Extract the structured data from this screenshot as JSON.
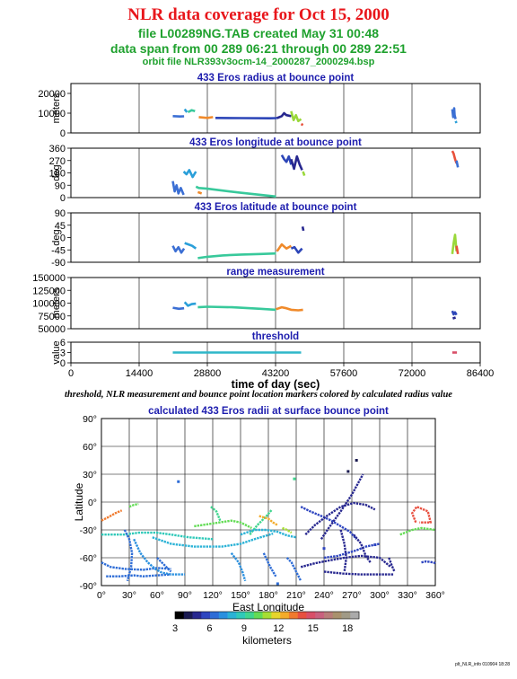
{
  "header": {
    "title": "NLR data coverage for Oct 15, 2000",
    "file_line": "file L00289NG.TAB created May 31 00:48",
    "span_line": "data span from 00 289 06:21 through 00 289 22:51",
    "orbit_line": "orbit file NLR393v3ocm-14_2000287_2000294.bsp"
  },
  "caption": "threshold, NLR measurement and bounce point location markers colored by calculated radius value",
  "footer": "plt_NLR_info 010904 18:28",
  "colors": {
    "title": "#e8161b",
    "subtitle": "#1fa12e",
    "panel_title": "#1d1dae"
  },
  "chart_data": [
    {
      "id": "radius",
      "type": "scatter",
      "title": "433 Eros radius at bounce point",
      "ylabel": "meters",
      "xlim": [
        0,
        86400
      ],
      "ylim": [
        0,
        25000
      ],
      "yticks": [
        0,
        10000,
        20000
      ],
      "segments": [
        {
          "x": [
            21500,
            23000,
            23900
          ],
          "y": [
            8500,
            8300,
            8400
          ]
        },
        {
          "x": [
            24000,
            24500
          ],
          "y": [
            12000,
            10500
          ]
        },
        {
          "x": [
            24700,
            25500,
            26200
          ],
          "y": [
            10500,
            11500,
            11000
          ]
        },
        {
          "x": [
            27000,
            28800,
            30000
          ],
          "y": [
            8000,
            7600,
            8000
          ]
        },
        {
          "x": [
            30500,
            36000,
            42000,
            43500
          ],
          "y": [
            7600,
            7500,
            7400,
            7500
          ]
        },
        {
          "x": [
            43500,
            44500,
            45000,
            45500,
            46500
          ],
          "y": [
            7500,
            8500,
            10000,
            9000,
            8500
          ]
        },
        {
          "x": [
            46500,
            47000,
            47500,
            48000,
            48600
          ],
          "y": [
            11000,
            6500,
            9000,
            6000,
            7000
          ]
        },
        {
          "x": [
            48600,
            49000
          ],
          "y": [
            4500,
            4000
          ]
        },
        {
          "x": [
            80500,
            80700,
            80900,
            81000,
            81200
          ],
          "y": [
            12000,
            8000,
            12500,
            9000,
            7000
          ]
        },
        {
          "x": [
            81200,
            81400
          ],
          "y": [
            6000,
            5000
          ]
        }
      ]
    },
    {
      "id": "longitude",
      "type": "scatter",
      "title": "433 Eros longitude at bounce point",
      "ylabel": "deg",
      "xlim": [
        0,
        86400
      ],
      "ylim": [
        0,
        360
      ],
      "yticks": [
        0,
        90,
        180,
        270,
        360
      ],
      "segments": [
        {
          "x": [
            21500,
            21900,
            22300,
            22700,
            23200,
            23800
          ],
          "y": [
            120,
            45,
            90,
            30,
            70,
            20
          ]
        },
        {
          "x": [
            23800,
            24400,
            25000,
            25700,
            26400
          ],
          "y": [
            190,
            170,
            200,
            150,
            190
          ]
        },
        {
          "x": [
            26400,
            27000,
            28800,
            36000,
            43300
          ],
          "y": [
            80,
            70,
            65,
            35,
            8
          ]
        },
        {
          "x": [
            26800,
            27600
          ],
          "y": [
            40,
            30
          ]
        },
        {
          "x": [
            44500,
            45000,
            45500,
            46000,
            46500
          ],
          "y": [
            310,
            280,
            260,
            300,
            240
          ]
        },
        {
          "x": [
            46500,
            47100,
            47700,
            48300,
            48800
          ],
          "y": [
            280,
            210,
            300,
            240,
            200
          ]
        },
        {
          "x": [
            49000,
            49300
          ],
          "y": [
            190,
            160
          ]
        },
        {
          "x": [
            80500,
            80800,
            81100,
            81400
          ],
          "y": [
            340,
            320,
            280,
            250
          ]
        },
        {
          "x": [
            81400,
            81700
          ],
          "y": [
            270,
            220
          ]
        }
      ]
    },
    {
      "id": "latitude",
      "type": "scatter",
      "title": "433 Eros latitude at bounce point",
      "ylabel": "deg",
      "xlim": [
        0,
        86400
      ],
      "ylim": [
        -90,
        90
      ],
      "yticks": [
        -90,
        -45,
        0,
        45,
        90
      ],
      "segments": [
        {
          "x": [
            21500,
            22100,
            22700,
            23300,
            23900
          ],
          "y": [
            -30,
            -50,
            -35,
            -55,
            -40
          ]
        },
        {
          "x": [
            24000,
            24800,
            25600,
            26400
          ],
          "y": [
            -20,
            -25,
            -30,
            -40
          ]
        },
        {
          "x": [
            26800,
            28800,
            32000,
            36000,
            40000,
            43300
          ],
          "y": [
            -75,
            -70,
            -65,
            -62,
            -60,
            -58
          ]
        },
        {
          "x": [
            43500,
            44500,
            45500,
            46500
          ],
          "y": [
            -50,
            -25,
            -40,
            -30
          ]
        },
        {
          "x": [
            46500,
            47200,
            48000,
            48800
          ],
          "y": [
            -40,
            -35,
            -55,
            -40
          ]
        },
        {
          "x": [
            48900,
            49100
          ],
          "y": [
            40,
            25
          ]
        },
        {
          "x": [
            80500,
            80800,
            81100,
            81400
          ],
          "y": [
            -60,
            -20,
            10,
            -50
          ]
        },
        {
          "x": [
            81400,
            81700
          ],
          "y": [
            -30,
            -60
          ]
        }
      ]
    },
    {
      "id": "range",
      "type": "scatter",
      "title": "range measurement",
      "ylabel": "meters",
      "xlim": [
        0,
        86400
      ],
      "ylim": [
        50000,
        150000
      ],
      "yticks": [
        50000,
        75000,
        100000,
        125000,
        150000
      ],
      "segments": [
        {
          "x": [
            21500,
            22800,
            23900
          ],
          "y": [
            91000,
            89000,
            90000
          ]
        },
        {
          "x": [
            24000,
            24700,
            25500,
            26400
          ],
          "y": [
            102000,
            95000,
            98000,
            99000
          ]
        },
        {
          "x": [
            26800,
            28800,
            34000,
            40000,
            43300
          ],
          "y": [
            92000,
            93000,
            92000,
            89000,
            87000
          ]
        },
        {
          "x": [
            43300,
            44500,
            45500,
            46500,
            48000,
            49000
          ],
          "y": [
            88000,
            92000,
            90000,
            87000,
            86000,
            87000
          ]
        },
        {
          "x": [
            80500,
            80800,
            81100,
            81400
          ],
          "y": [
            85000,
            78000,
            82000,
            77000
          ]
        },
        {
          "x": [
            80600,
            81200
          ],
          "y": [
            70000,
            72000
          ]
        }
      ]
    },
    {
      "id": "threshold",
      "type": "scatter",
      "title": "threshold",
      "ylabel": "value",
      "xlabel": "time of day (sec)",
      "xlim": [
        0,
        86400
      ],
      "ylim": [
        0,
        6
      ],
      "yticks": [
        0,
        3,
        6
      ],
      "xticks": [
        0,
        14400,
        28800,
        43200,
        57600,
        72000,
        86400
      ],
      "segments": [
        {
          "x": [
            21500,
            24000,
            28800,
            36000,
            43200,
            48600
          ],
          "y": [
            3,
            3,
            3,
            3,
            3,
            3
          ]
        },
        {
          "x": [
            80500,
            81500
          ],
          "y": [
            3,
            3
          ]
        }
      ]
    },
    {
      "id": "map",
      "type": "scatter",
      "title": "calculated 433 Eros radii at surface bounce point",
      "xlabel": "East Longitude",
      "ylabel": "Latitude",
      "xlim": [
        0,
        360
      ],
      "ylim": [
        -90,
        90
      ],
      "xticks": [
        0,
        30,
        60,
        90,
        120,
        150,
        180,
        210,
        240,
        270,
        300,
        330,
        360
      ],
      "yticks": [
        -90,
        -60,
        -30,
        0,
        30,
        60,
        90
      ],
      "colorbar": {
        "label": "kilometers",
        "min": 3,
        "max": 19,
        "ticks": [
          3,
          6,
          9,
          12,
          15,
          18
        ],
        "colors": [
          "#000000",
          "#1a1a50",
          "#27278f",
          "#2e45c0",
          "#2d6cd6",
          "#2a90df",
          "#2ab2d6",
          "#2fc9b9",
          "#3fd58e",
          "#63dc55",
          "#a6df32",
          "#e6d52b",
          "#f3ab2a",
          "#f07a2d",
          "#e85040",
          "#d94f68",
          "#c9607e",
          "#b97c79",
          "#a9916d",
          "#a09a86",
          "#aaaaaa"
        ]
      },
      "segments": [
        {
          "x": [
            0,
            8,
            15,
            22
          ],
          "y": [
            -20,
            -16,
            -12,
            -9
          ],
          "v": 13.5
        },
        {
          "x": [
            30,
            35,
            40
          ],
          "y": [
            -5,
            -3,
            -2
          ],
          "v": 10
        },
        {
          "x": [
            0,
            25,
            40,
            60,
            75,
            95,
            120
          ],
          "y": [
            -35,
            -35,
            -33,
            -33,
            -35,
            -38,
            -40
          ],
          "v": 8.5
        },
        {
          "x": [
            0,
            10,
            25,
            45,
            60,
            75
          ],
          "y": [
            -65,
            -70,
            -72,
            -73,
            -71,
            -72
          ],
          "v": 6
        },
        {
          "x": [
            5,
            20,
            35,
            45,
            60,
            75
          ],
          "y": [
            -80,
            -80,
            -79,
            -80,
            -79,
            -78
          ],
          "v": 6.5
        },
        {
          "x": [
            35,
            42,
            50,
            58,
            65,
            75,
            90
          ],
          "y": [
            -40,
            -55,
            -65,
            -72,
            -76,
            -78,
            -78
          ],
          "v": 7
        },
        {
          "x": [
            25,
            30,
            33,
            32,
            28
          ],
          "y": [
            -30,
            -40,
            -55,
            -70,
            -85
          ],
          "v": 6
        },
        {
          "x": [
            60,
            65,
            70,
            75
          ],
          "y": [
            -60,
            -65,
            -70,
            -75
          ],
          "v": 6
        },
        {
          "x": [
            55,
            75,
            100,
            130,
            150,
            165,
            185
          ],
          "y": [
            -38,
            -45,
            -48,
            -48,
            -45,
            -40,
            -34
          ],
          "v": 7.5
        },
        {
          "x": [
            100,
            120,
            140,
            150,
            162
          ],
          "y": [
            -26,
            -23,
            -20,
            -22,
            -28
          ],
          "v": 10.5
        },
        {
          "x": [
            118,
            124,
            128
          ],
          "y": [
            -5,
            -10,
            -20
          ],
          "v": 9
        },
        {
          "x": [
            160,
            168,
            178,
            184
          ],
          "y": [
            -35,
            -25,
            -15,
            -8
          ],
          "v": 9
        },
        {
          "x": [
            150,
            165,
            178,
            190,
            200,
            210
          ],
          "y": [
            -35,
            -30,
            -30,
            -32,
            -36,
            -38
          ],
          "v": 8
        },
        {
          "x": [
            170,
            180,
            185,
            190
          ],
          "y": [
            -15,
            -18,
            -22,
            -25
          ],
          "v": 12.5
        },
        {
          "x": [
            195,
            200,
            205
          ],
          "y": [
            -28,
            -30,
            -33
          ],
          "v": 11
        },
        {
          "x": [
            140,
            148,
            152,
            155
          ],
          "y": [
            -55,
            -65,
            -75,
            -85
          ],
          "v": 7
        },
        {
          "x": [
            175,
            182,
            188
          ],
          "y": [
            -55,
            -70,
            -80
          ],
          "v": 6
        },
        {
          "x": [
            200,
            205,
            210,
            215
          ],
          "y": [
            -60,
            -65,
            -75,
            -85
          ],
          "v": 6
        },
        {
          "x": [
            215,
            225,
            237,
            248,
            258,
            268,
            275
          ],
          "y": [
            -5,
            -10,
            -15,
            -20,
            -26,
            -32,
            -40
          ],
          "v": 5.5
        },
        {
          "x": [
            220,
            230,
            243,
            258,
            272,
            285,
            295
          ],
          "y": [
            -35,
            -25,
            -15,
            -5,
            -1,
            -3,
            -8
          ],
          "v": 4.5
        },
        {
          "x": [
            237,
            245,
            258,
            270,
            282
          ],
          "y": [
            -40,
            -28,
            -10,
            8,
            30
          ],
          "v": 4.5
        },
        {
          "x": [
            240,
            255,
            265,
            275,
            285,
            300
          ],
          "y": [
            -60,
            -58,
            -55,
            -52,
            -48,
            -45
          ],
          "v": 5
        },
        {
          "x": [
            215,
            230,
            245,
            262,
            280,
            300,
            312
          ],
          "y": [
            -70,
            -66,
            -63,
            -60,
            -58,
            -60,
            -70
          ],
          "v": 4.5
        },
        {
          "x": [
            240,
            260,
            280,
            300,
            315
          ],
          "y": [
            -75,
            -77,
            -78,
            -78,
            -78
          ],
          "v": 4.5
        },
        {
          "x": [
            258,
            262,
            264,
            262
          ],
          "y": [
            -30,
            -45,
            -60,
            -75
          ],
          "v": 4.5
        },
        {
          "x": [
            272,
            280,
            285,
            290
          ],
          "y": [
            -35,
            -45,
            -58,
            -65
          ],
          "v": 4.5
        },
        {
          "x": [
            310,
            313,
            316
          ],
          "y": [
            -60,
            -68,
            -75
          ],
          "v": 4.5
        },
        {
          "x": [
            322,
            335,
            345,
            360
          ],
          "y": [
            -35,
            -30,
            -28,
            -30
          ],
          "v": 10.5
        },
        {
          "x": [
            345,
            350,
            358,
            360
          ],
          "y": [
            -65,
            -64,
            -65,
            -66
          ],
          "v": 5
        },
        {
          "x": [
            339,
            335,
            340,
            352,
            355,
            343
          ],
          "y": [
            -22,
            -12,
            -5,
            -10,
            -22,
            -22
          ],
          "v": 14
        }
      ],
      "points": [
        {
          "x": 83,
          "y": 22,
          "v": 6
        },
        {
          "x": 208,
          "y": 25,
          "v": 9.5
        },
        {
          "x": 266,
          "y": 33,
          "v": 4
        },
        {
          "x": 275,
          "y": 45,
          "v": 3.5
        },
        {
          "x": 240,
          "y": -50,
          "v": 5
        },
        {
          "x": 190,
          "y": -88,
          "v": 6
        },
        {
          "x": 295,
          "y": -46,
          "v": 5
        }
      ]
    }
  ]
}
